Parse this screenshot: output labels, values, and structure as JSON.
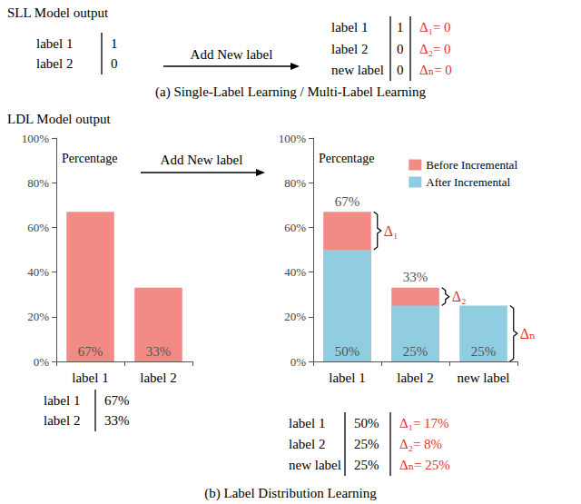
{
  "panel_a": {
    "heading": "SLL Model output",
    "arrow_label": "Add New label",
    "before_table": [
      [
        "label 1",
        "1"
      ],
      [
        "label 2",
        "0"
      ]
    ],
    "after_table": [
      [
        "label 1",
        "1",
        "Δ₁= 0"
      ],
      [
        "label 2",
        "0",
        "Δ₂= 0"
      ],
      [
        "new label",
        "0",
        "Δₙ= 0"
      ]
    ],
    "caption": "(a) Single-Label Learning / Multi-Label Learning"
  },
  "panel_b": {
    "heading": "LDL Model output",
    "arrow_label": "Add New label",
    "before_table": [
      [
        "label 1",
        "67%"
      ],
      [
        "label 2",
        "33%"
      ]
    ],
    "after_table": [
      [
        "label 1",
        "50%",
        "Δ₁= 17%"
      ],
      [
        "label 2",
        "25%",
        "Δ₂= 8%"
      ],
      [
        "new label",
        "25%",
        "Δₙ= 25%"
      ]
    ],
    "caption": "(b) Label Distribution Learning"
  },
  "chart_data": [
    {
      "type": "bar",
      "y_label": "Percentage",
      "categories": [
        "label 1",
        "label 2"
      ],
      "values": [
        67,
        33
      ],
      "value_labels": [
        "67%",
        "33%"
      ],
      "color": "#f28b85",
      "data_labels": true,
      "ylim": [
        0,
        100
      ],
      "yticks": [
        {
          "value": 0,
          "label": "0%"
        },
        {
          "value": 20,
          "label": "20%"
        },
        {
          "value": 40,
          "label": "40%"
        },
        {
          "value": 60,
          "label": "60%"
        },
        {
          "value": 80,
          "label": "80%"
        },
        {
          "value": 100,
          "label": "100%"
        }
      ],
      "grid": false
    },
    {
      "type": "bar",
      "y_label": "Percentage",
      "categories": [
        "label 1",
        "label 2",
        "new label"
      ],
      "series": [
        {
          "name": "Before Incremental",
          "color": "#f28b85",
          "values": [
            67,
            33,
            0
          ],
          "value_labels": [
            "67%",
            "33%",
            null
          ]
        },
        {
          "name": "After Incremental",
          "color": "#91cde0",
          "values": [
            50,
            25,
            25
          ],
          "value_labels": [
            "50%",
            "25%",
            "25%"
          ]
        }
      ],
      "annotations": [
        {
          "category": "label 1",
          "label": "Δ₁"
        },
        {
          "category": "label 2",
          "label": "Δ₂"
        },
        {
          "category": "new label",
          "label": "Δₙ"
        }
      ],
      "data_labels": true,
      "legend": "upper right",
      "ylim": [
        0,
        100
      ],
      "yticks": [
        {
          "value": 0,
          "label": "0%"
        },
        {
          "value": 20,
          "label": "20%"
        },
        {
          "value": 40,
          "label": "40%"
        },
        {
          "value": 60,
          "label": "60%"
        },
        {
          "value": 80,
          "label": "80%"
        },
        {
          "value": 100,
          "label": "100%"
        }
      ],
      "grid": false
    }
  ]
}
